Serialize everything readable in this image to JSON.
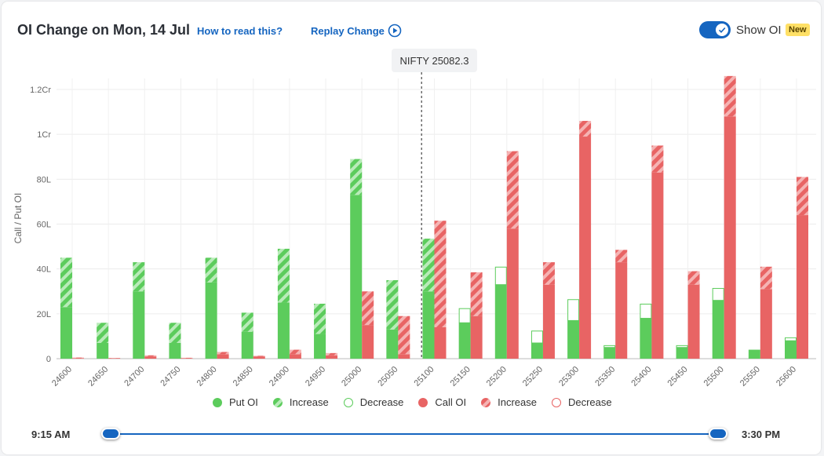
{
  "header": {
    "title": "OI Change on Mon, 14 Jul",
    "how_to_read": "How to read this?",
    "replay_change": "Replay Change",
    "toggle_label": "Show OI",
    "toggle_on": true,
    "badge": "New"
  },
  "spot": {
    "label": "NIFTY 25082.3",
    "value": 25082.3
  },
  "timeline": {
    "start": "9:15 AM",
    "end": "3:30 PM"
  },
  "legend": {
    "put_oi": "Put OI",
    "put_increase": "Increase",
    "put_decrease": "Decrease",
    "call_oi": "Call OI",
    "call_increase": "Increase",
    "call_decrease": "Decrease"
  },
  "colors": {
    "put": "#5ccc5c",
    "put_hatch": "#b9ebb9",
    "call": "#e86464",
    "call_hatch": "#f5b3b3",
    "accent": "#1565c0"
  },
  "chart_data": {
    "type": "bar",
    "ylabel": "Call / Put OI",
    "ylim": [
      0,
      125
    ],
    "y_ticks": [
      {
        "value": 0,
        "label": "0"
      },
      {
        "value": 20,
        "label": "20L"
      },
      {
        "value": 40,
        "label": "40L"
      },
      {
        "value": 60,
        "label": "60L"
      },
      {
        "value": 80,
        "label": "80L"
      },
      {
        "value": 100,
        "label": "1Cr"
      },
      {
        "value": 120,
        "label": "1.2Cr"
      }
    ],
    "categories": [
      "24600",
      "24650",
      "24700",
      "24750",
      "24800",
      "24850",
      "24900",
      "24950",
      "25000",
      "25050",
      "25100",
      "25150",
      "25200",
      "25250",
      "25300",
      "25350",
      "25400",
      "25450",
      "25500",
      "25550",
      "25600"
    ],
    "series": [
      {
        "name": "Put OI",
        "oi": [
          23,
          7,
          30,
          7,
          34,
          12,
          25,
          11,
          73,
          13,
          30,
          16,
          33,
          7,
          17,
          5,
          18,
          5,
          26,
          4,
          8
        ],
        "change": [
          22,
          9,
          13,
          9,
          11,
          8.5,
          24,
          13.5,
          16,
          22,
          23.5,
          -6.5,
          -8,
          -5.5,
          -9.5,
          -1,
          -6.5,
          -1,
          -5.5,
          0,
          -1.5
        ]
      },
      {
        "name": "Call OI",
        "oi": [
          0.2,
          0.2,
          1,
          0.2,
          2,
          1,
          2,
          1.5,
          15,
          2,
          14,
          19,
          58,
          33,
          99,
          43,
          83,
          33,
          108,
          31,
          64
        ],
        "change": [
          0.3,
          0.1,
          0.5,
          0.2,
          1,
          0.3,
          2,
          1,
          15,
          17,
          47.5,
          19.5,
          34.5,
          10,
          7,
          5.5,
          12,
          6,
          18,
          10,
          17
        ]
      }
    ]
  }
}
